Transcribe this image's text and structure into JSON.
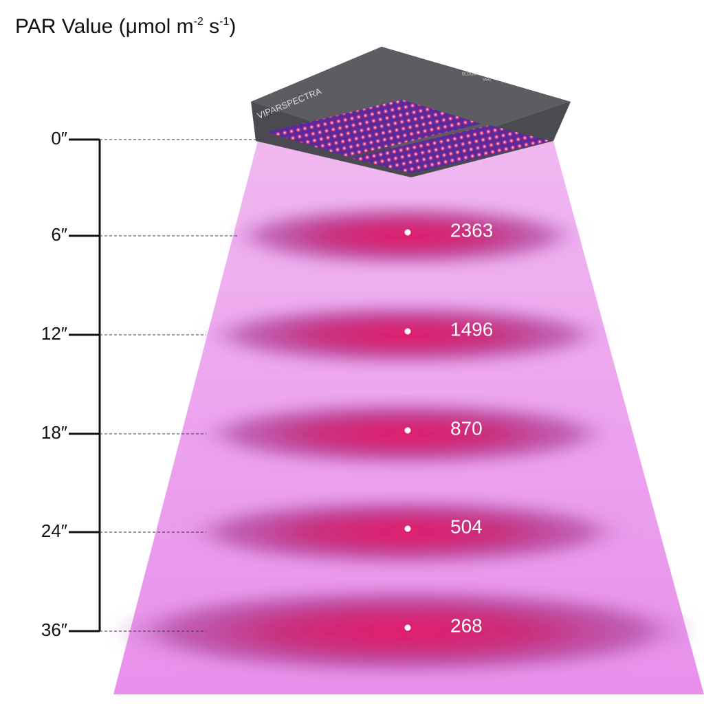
{
  "title": [
    "PAR Value (μmol m",
    "-2",
    " s",
    "-1",
    ")"
  ],
  "lamp": {
    "brand": "VIPARSPECTRA",
    "switches": [
      "BLOOM",
      "VEG"
    ]
  },
  "levels": [
    {
      "distance": "0″"
    },
    {
      "distance": "6″",
      "par": "2363"
    },
    {
      "distance": "12″",
      "par": "1496"
    },
    {
      "distance": "18″",
      "par": "870"
    },
    {
      "distance": "24″",
      "par": "504"
    },
    {
      "distance": "36″",
      "par": "268"
    }
  ]
}
